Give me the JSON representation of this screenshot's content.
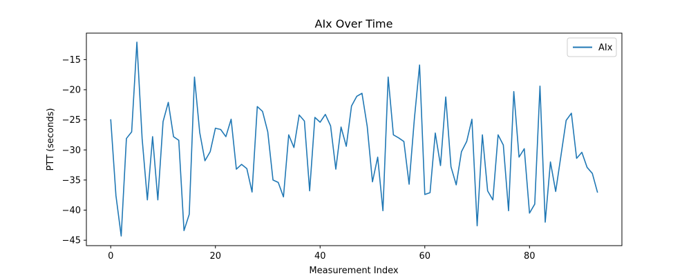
{
  "chart_data": {
    "type": "line",
    "title": "AIx Over Time",
    "xlabel": "Measurement Index",
    "ylabel": "PTT (seconds)",
    "xlim": [
      -4.65,
      97.65
    ],
    "ylim": [
      -45.9,
      -10.6
    ],
    "xticks": [
      0,
      20,
      40,
      60,
      80
    ],
    "yticks": [
      -45,
      -40,
      -35,
      -30,
      -25,
      -20,
      -15
    ],
    "grid": false,
    "legend": {
      "placement": "upper-right",
      "entries": [
        "AIx"
      ]
    },
    "series": [
      {
        "name": "AIx",
        "color": "#1f77b4",
        "values": [
          -24.9,
          -37.6,
          -44.3,
          -28.1,
          -27.0,
          -12.1,
          -28.1,
          -38.3,
          -27.8,
          -38.3,
          -25.3,
          -22.1,
          -27.8,
          -28.4,
          -43.4,
          -40.7,
          -17.9,
          -27.1,
          -31.8,
          -30.3,
          -26.4,
          -26.6,
          -27.8,
          -24.9,
          -33.2,
          -32.4,
          -33.1,
          -37.0,
          -22.8,
          -23.6,
          -27.0,
          -35.0,
          -35.4,
          -37.8,
          -27.5,
          -29.6,
          -24.2,
          -25.2,
          -36.8,
          -24.6,
          -25.4,
          -24.1,
          -26.0,
          -33.2,
          -26.2,
          -29.4,
          -22.7,
          -21.1,
          -20.6,
          -26.1,
          -35.3,
          -31.2,
          -40.1,
          -17.9,
          -27.5,
          -28.0,
          -28.6,
          -35.7,
          -24.9,
          -15.9,
          -37.4,
          -37.1,
          -27.2,
          -32.6,
          -21.2,
          -32.8,
          -35.8,
          -30.3,
          -28.6,
          -24.9,
          -42.6,
          -27.5,
          -36.8,
          -38.3,
          -27.5,
          -29.2,
          -40.1,
          -20.3,
          -31.2,
          -29.8,
          -40.5,
          -39.0,
          -19.4,
          -42.0,
          -32.0,
          -36.9,
          -31.0,
          -25.1,
          -23.9,
          -31.4,
          -30.4,
          -32.9,
          -33.9,
          -37.1
        ]
      }
    ]
  }
}
